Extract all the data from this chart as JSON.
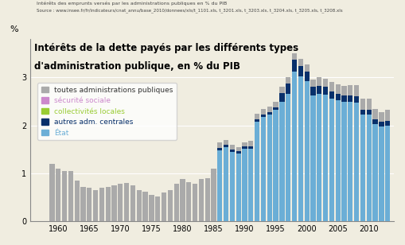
{
  "title_line1": "Intérêts de la dette payés par les différents types",
  "title_line2": "d'administration publique, en % du PIB",
  "subtitle1": "Intérêts des emprunts versés par les administrations publiques en % du PIB",
  "subtitle2": "Source : www.insee.fr/fr/indicateurs/cnat_annu/base_2010/donnees/xls/t_1101.xls, t_3201.xls, t_3203.xls, t_3204.xls, t_3205.xls, t_3208.xls",
  "ylabel": "%",
  "years": [
    1959,
    1960,
    1961,
    1962,
    1963,
    1964,
    1965,
    1966,
    1967,
    1968,
    1969,
    1970,
    1971,
    1972,
    1973,
    1974,
    1975,
    1976,
    1977,
    1978,
    1979,
    1980,
    1981,
    1982,
    1983,
    1984,
    1985,
    1986,
    1987,
    1988,
    1989,
    1990,
    1991,
    1992,
    1993,
    1994,
    1995,
    1996,
    1997,
    1998,
    1999,
    2000,
    2001,
    2002,
    2003,
    2004,
    2005,
    2006,
    2007,
    2008,
    2009,
    2010,
    2011,
    2012,
    2013
  ],
  "total": [
    1.2,
    1.1,
    1.05,
    1.05,
    0.85,
    0.72,
    0.7,
    0.65,
    0.7,
    0.72,
    0.75,
    0.78,
    0.8,
    0.75,
    0.65,
    0.62,
    0.55,
    0.52,
    0.6,
    0.65,
    0.78,
    0.88,
    0.82,
    0.78,
    0.88,
    0.9,
    1.1,
    1.65,
    1.7,
    1.6,
    1.55,
    1.65,
    1.68,
    2.25,
    2.35,
    2.4,
    2.5,
    2.8,
    3.0,
    3.5,
    3.38,
    3.28,
    2.95,
    3.0,
    2.98,
    2.9,
    2.86,
    2.83,
    2.84,
    2.84,
    2.55,
    2.55,
    2.35,
    2.28,
    2.32
  ],
  "etat": [
    0,
    0,
    0,
    0,
    0,
    0,
    0,
    0,
    0,
    0,
    0,
    0,
    0,
    0,
    0,
    0,
    0,
    0,
    0,
    0,
    0,
    0,
    0,
    0,
    0,
    0,
    0,
    1.48,
    1.55,
    1.45,
    1.42,
    1.52,
    1.52,
    2.08,
    2.18,
    2.22,
    2.32,
    2.5,
    2.65,
    3.12,
    3.02,
    2.92,
    2.62,
    2.65,
    2.64,
    2.55,
    2.52,
    2.49,
    2.5,
    2.48,
    2.22,
    2.22,
    2.03,
    1.97,
    2.0
  ],
  "autres_adm": [
    0,
    0,
    0,
    0,
    0,
    0,
    0,
    0,
    0,
    0,
    0,
    0,
    0,
    0,
    0,
    0,
    0,
    0,
    0,
    0,
    0,
    0,
    0,
    0,
    0,
    0,
    0,
    0.05,
    0.05,
    0.05,
    0.04,
    0.04,
    0.04,
    0.04,
    0.05,
    0.05,
    0.05,
    0.18,
    0.22,
    0.25,
    0.22,
    0.2,
    0.18,
    0.17,
    0.16,
    0.15,
    0.14,
    0.13,
    0.12,
    0.12,
    0.1,
    0.1,
    0.1,
    0.1,
    0.1
  ],
  "color_total": "#aaaaaa",
  "color_etat": "#6baed6",
  "color_autres": "#08306b",
  "color_secu": "#cc88cc",
  "color_colloc": "#99cc33",
  "legend_labels": [
    "toutes administrations publiques",
    "sécurité sociale",
    "collectivités locales",
    "autres adm. centrales",
    "État"
  ],
  "legend_colors": [
    "#aaaaaa",
    "#cc88cc",
    "#99cc33",
    "#08306b",
    "#6baed6"
  ],
  "legend_text_colors": [
    "#333333",
    "#cc88cc",
    "#99cc33",
    "#08306b",
    "#6baed6"
  ],
  "xticks": [
    1955,
    1960,
    1965,
    1970,
    1975,
    1980,
    1985,
    1990,
    1995,
    2000,
    2005,
    2010
  ],
  "yticks": [
    0,
    1,
    2,
    3
  ],
  "ylim": [
    0,
    3.8
  ],
  "xlim": [
    1955.5,
    2014
  ],
  "background_color": "#f0ede0"
}
